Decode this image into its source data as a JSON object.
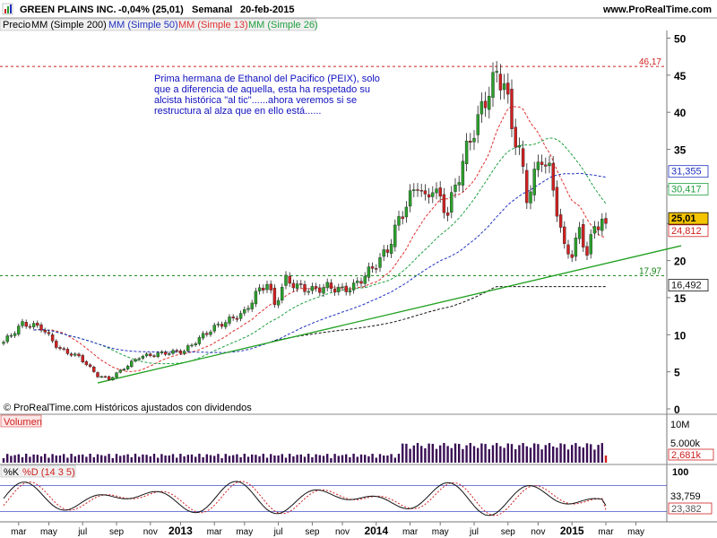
{
  "header": {
    "instrument": "GREEN PLAINS INC.",
    "change": "-0,04% (25,01)",
    "period": "Semanal",
    "date": "20-feb-2015",
    "site": "www.ProRealTime.com"
  },
  "legend": {
    "price": "Precio",
    "ma200": "MM (Simple 200)",
    "ma50": "MM (Simple 50)",
    "ma13": "MM (Simple 13)",
    "ma26": "MM (Simple 26)"
  },
  "annotation": {
    "line1": "Prima hermana de Ethanol del Pacifico (PEIX), solo",
    "line2": "que a diferencia de aquella, esta ha respetado su",
    "line3": "alcista histórica \"al tic\"......ahora veremos si se",
    "line4": "restructura al alza que en ello está......"
  },
  "footer_note": "© ProRealTime.com  Históricos ajustados con dividendos",
  "volume_panel": {
    "title": "Volumen",
    "labels": {
      "top": "10M",
      "mid": "5.000k",
      "last": "2,681k"
    }
  },
  "stoch_panel": {
    "k": "%K",
    "d": "%D (14 3 5)",
    "labels": {
      "top": "100",
      "v1": "33,759",
      "v2": "23,382"
    }
  },
  "price_tags": {
    "level_high": "46,17",
    "level_low": "17,97",
    "ma26": "31,355",
    "ma50": "30,417",
    "close": "25,01",
    "ma13": "24,812",
    "ma200": "16,492"
  },
  "colors": {
    "up": "#2aa02a",
    "down": "#d02020",
    "ma200": "#111111",
    "ma50": "#2030c0",
    "ma13": "#e03030",
    "ma26": "#20a040",
    "trend": "#20a020",
    "annotation": "#1010c0",
    "volume": "#3a0f55",
    "volume_last": "#d02020"
  },
  "chart_data": {
    "type": "candlestick",
    "title": "GREEN PLAINS INC.",
    "y_axis": {
      "ticks": [
        0,
        5,
        10,
        15,
        20,
        25,
        30,
        35,
        40,
        45,
        50
      ],
      "range": [
        0,
        52
      ]
    },
    "x_axis": {
      "ticks": [
        "mar",
        "may",
        "jul",
        "sep",
        "nov",
        "2013",
        "mar",
        "may",
        "jul",
        "sep",
        "nov",
        "2014",
        "mar",
        "may",
        "jul",
        "sep",
        "nov",
        "2015",
        "mar",
        "may"
      ],
      "tick_index": [
        4,
        12,
        21,
        30,
        39,
        47,
        56,
        64,
        73,
        82,
        90,
        99,
        108,
        116,
        125,
        134,
        142,
        151,
        160,
        168
      ]
    },
    "close_anchors": [
      [
        0,
        9.0
      ],
      [
        5,
        11.5
      ],
      [
        10,
        11.0
      ],
      [
        15,
        8.0
      ],
      [
        20,
        7.0
      ],
      [
        25,
        4.5
      ],
      [
        28,
        4.0
      ],
      [
        32,
        5.5
      ],
      [
        36,
        7.0
      ],
      [
        42,
        7.5
      ],
      [
        48,
        7.8
      ],
      [
        52,
        9.5
      ],
      [
        56,
        11.0
      ],
      [
        60,
        12.0
      ],
      [
        64,
        13.0
      ],
      [
        67,
        15.5
      ],
      [
        70,
        17.0
      ],
      [
        72,
        14.0
      ],
      [
        75,
        17.5
      ],
      [
        78,
        16.5
      ],
      [
        82,
        16.0
      ],
      [
        86,
        16.5
      ],
      [
        90,
        16.0
      ],
      [
        93,
        16.5
      ],
      [
        96,
        18.0
      ],
      [
        99,
        19.5
      ],
      [
        102,
        21.5
      ],
      [
        105,
        25.5
      ],
      [
        108,
        28.5
      ],
      [
        110,
        30.5
      ],
      [
        112,
        28.0
      ],
      [
        114,
        30.0
      ],
      [
        116,
        28.0
      ],
      [
        118,
        26.5
      ],
      [
        120,
        30.0
      ],
      [
        123,
        35.0
      ],
      [
        126,
        39.0
      ],
      [
        129,
        43.0
      ],
      [
        131,
        45.0
      ],
      [
        133,
        44.0
      ],
      [
        135,
        38.0
      ],
      [
        137,
        35.0
      ],
      [
        139,
        28.5
      ],
      [
        141,
        31.5
      ],
      [
        143,
        34.0
      ],
      [
        145,
        32.0
      ],
      [
        147,
        27.0
      ],
      [
        149,
        21.5
      ],
      [
        151,
        21.0
      ],
      [
        153,
        24.0
      ],
      [
        155,
        21.0
      ],
      [
        157,
        24.5
      ],
      [
        159,
        25.5
      ],
      [
        160,
        25.01
      ]
    ],
    "levels": {
      "resistance": 46.17,
      "support": 17.97
    },
    "trendline": {
      "from": [
        25,
        3.5
      ],
      "to": [
        180,
        22.0
      ]
    },
    "moving_averages_last": {
      "ma13": 24.812,
      "ma26": 31.355,
      "ma50": 30.417,
      "ma200": 16.492
    },
    "last_close": 25.01,
    "volume_last_k": 2681,
    "stochastic_last": {
      "k": 33.759,
      "d": 23.382
    }
  }
}
